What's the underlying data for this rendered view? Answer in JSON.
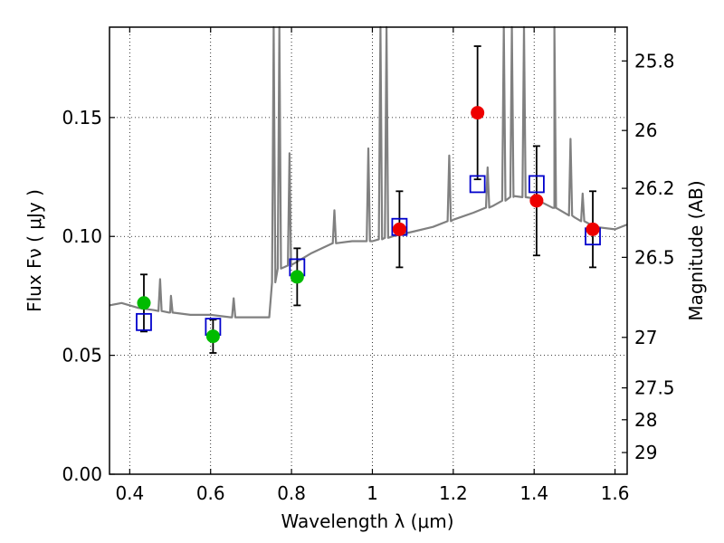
{
  "chart_data": {
    "type": "scatter",
    "xlabel": "Wavelength  λ (μm)",
    "ylabel": "Flux  Fν  ( μJy )",
    "ylabel_right": "Magnitude (AB)",
    "xlim": [
      0.35,
      1.63
    ],
    "ylim": [
      0.0,
      0.188
    ],
    "x_ticks": [
      0.4,
      0.6,
      0.8,
      1.0,
      1.2,
      1.4,
      1.6
    ],
    "x_tick_labels": [
      "0.4",
      "0.6",
      "0.8",
      "1",
      "1.2",
      "1.4",
      "1.6"
    ],
    "y_ticks": [
      0.0,
      0.05,
      0.1,
      0.15
    ],
    "y_tick_labels": [
      "0.00",
      "0.05",
      "0.10",
      "0.15"
    ],
    "mag_ticks": [
      25.8,
      26,
      26.2,
      26.5,
      27,
      27.5,
      28,
      29
    ],
    "mag_tick_labels": [
      "25.8",
      "26",
      "26.2",
      "26.5",
      "27",
      "27.5",
      "28",
      "29"
    ],
    "grid": true,
    "observed_points": [
      {
        "x": 0.435,
        "y": 0.072,
        "yerr": 0.012,
        "color": "#00bb00"
      },
      {
        "x": 0.606,
        "y": 0.058,
        "yerr": 0.007,
        "color": "#00bb00"
      },
      {
        "x": 0.814,
        "y": 0.083,
        "yerr": 0.012,
        "color": "#00bb00"
      },
      {
        "x": 1.067,
        "y": 0.103,
        "yerr": 0.016,
        "color": "#ee0000"
      },
      {
        "x": 1.26,
        "y": 0.152,
        "yerr": 0.028,
        "color": "#ee0000"
      },
      {
        "x": 1.406,
        "y": 0.115,
        "yerr": 0.023,
        "color": "#ee0000"
      },
      {
        "x": 1.545,
        "y": 0.103,
        "yerr": 0.016,
        "color": "#ee0000"
      }
    ],
    "model_photometry": [
      {
        "x": 0.435,
        "y": 0.064
      },
      {
        "x": 0.606,
        "y": 0.062
      },
      {
        "x": 0.814,
        "y": 0.087
      },
      {
        "x": 1.067,
        "y": 0.104
      },
      {
        "x": 1.26,
        "y": 0.122
      },
      {
        "x": 1.406,
        "y": 0.122
      },
      {
        "x": 1.545,
        "y": 0.1
      }
    ],
    "model_spectrum_color": "#808080",
    "model_spectrum_continuum": [
      [
        0.35,
        0.071
      ],
      [
        0.38,
        0.072
      ],
      [
        0.42,
        0.07
      ],
      [
        0.46,
        0.069
      ],
      [
        0.5,
        0.068
      ],
      [
        0.55,
        0.067
      ],
      [
        0.6,
        0.067
      ],
      [
        0.65,
        0.066
      ],
      [
        0.7,
        0.066
      ],
      [
        0.745,
        0.066
      ],
      [
        0.76,
        0.086
      ],
      [
        0.8,
        0.088
      ],
      [
        0.85,
        0.093
      ],
      [
        0.9,
        0.097
      ],
      [
        0.95,
        0.098
      ],
      [
        1.0,
        0.098
      ],
      [
        1.05,
        0.1
      ],
      [
        1.1,
        0.102
      ],
      [
        1.15,
        0.104
      ],
      [
        1.2,
        0.107
      ],
      [
        1.25,
        0.11
      ],
      [
        1.3,
        0.113
      ],
      [
        1.35,
        0.117
      ],
      [
        1.4,
        0.116
      ],
      [
        1.45,
        0.112
      ],
      [
        1.5,
        0.108
      ],
      [
        1.55,
        0.104
      ],
      [
        1.6,
        0.103
      ],
      [
        1.63,
        0.105
      ]
    ],
    "model_spectrum_lines": [
      [
        0.475,
        0.082
      ],
      [
        0.502,
        0.075
      ],
      [
        0.657,
        0.074
      ],
      [
        0.756,
        0.188
      ],
      [
        0.77,
        0.188
      ],
      [
        0.795,
        0.135
      ],
      [
        0.906,
        0.111
      ],
      [
        0.99,
        0.137
      ],
      [
        1.02,
        0.188
      ],
      [
        1.035,
        0.188
      ],
      [
        1.19,
        0.134
      ],
      [
        1.285,
        0.129
      ],
      [
        1.325,
        0.188
      ],
      [
        1.345,
        0.188
      ],
      [
        1.375,
        0.188
      ],
      [
        1.45,
        0.188
      ],
      [
        1.49,
        0.141
      ],
      [
        1.52,
        0.118
      ]
    ]
  }
}
